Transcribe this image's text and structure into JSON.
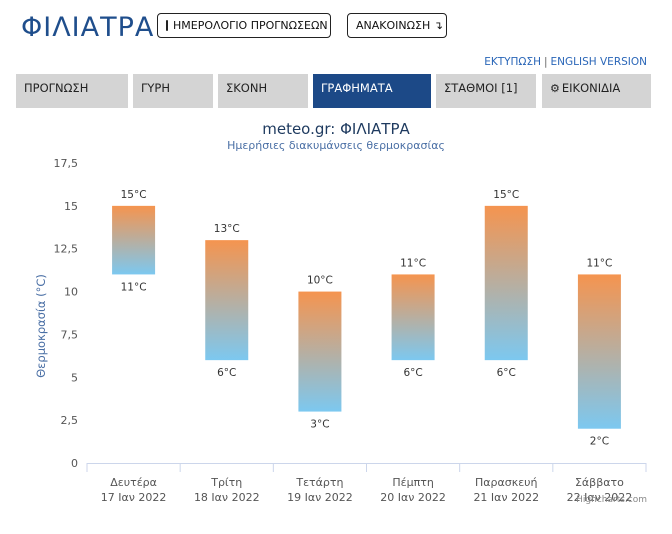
{
  "header": {
    "site_title": "ΦΙΛΙΑΤΡΑ",
    "calendar_button": "ΗΜΕΡΟΛΟΓΙΟ ΠΡΟΓΝΩΣΕΩΝ",
    "announcement_button": "ΑΝΑΚΟΙΝΩΣΗ ↴"
  },
  "top_links": {
    "print": "ΕΚΤΥΠΩΣΗ",
    "separator": "|",
    "english": "ENGLISH VERSION"
  },
  "tabs": [
    {
      "label": "ΠΡΟΓΝΩΣΗ",
      "active": false
    },
    {
      "label": "ΓΥΡΗ",
      "active": false
    },
    {
      "label": "ΣΚΟΝΗ",
      "active": false
    },
    {
      "label": "ΓΡΑΦΗΜΑΤΑ",
      "active": true
    },
    {
      "label": "ΣΤΑΘΜΟΙ [1]",
      "active": false
    },
    {
      "label": "ΕΙΚΟΝΙΔΙΑ",
      "active": false,
      "icon": "gear-icon"
    }
  ],
  "chart_data": {
    "type": "columnrange",
    "title": "meteo.gr: ΦΙΛΙΑΤΡΑ",
    "subtitle": "Ημερήσιες διακυμάνσεις θερμοκρασίας",
    "ylabel": "Θερμοκρασία (°C)",
    "ylim": [
      0,
      17.5
    ],
    "yticks": [
      "0",
      "2,5",
      "5",
      "7,5",
      "10",
      "12,5",
      "15",
      "17,5"
    ],
    "unit": "°C",
    "categories": [
      {
        "day": "Δευτέρα",
        "date": "17 Ιαν 2022"
      },
      {
        "day": "Τρίτη",
        "date": "18 Ιαν 2022"
      },
      {
        "day": "Τετάρτη",
        "date": "19 Ιαν 2022"
      },
      {
        "day": "Πέμπτη",
        "date": "20 Ιαν 2022"
      },
      {
        "day": "Παρασκευή",
        "date": "21 Ιαν 2022"
      },
      {
        "day": "Σάββατο",
        "date": "22 Ιαν 2022"
      }
    ],
    "series": [
      {
        "name": "",
        "low": [
          11,
          6,
          3,
          6,
          6,
          2
        ],
        "high": [
          15,
          13,
          10,
          11,
          15,
          11
        ]
      }
    ],
    "low_color": "#7cc8f0",
    "high_color": "#f5944f",
    "grid": false
  },
  "credits": "Highcharts.com"
}
